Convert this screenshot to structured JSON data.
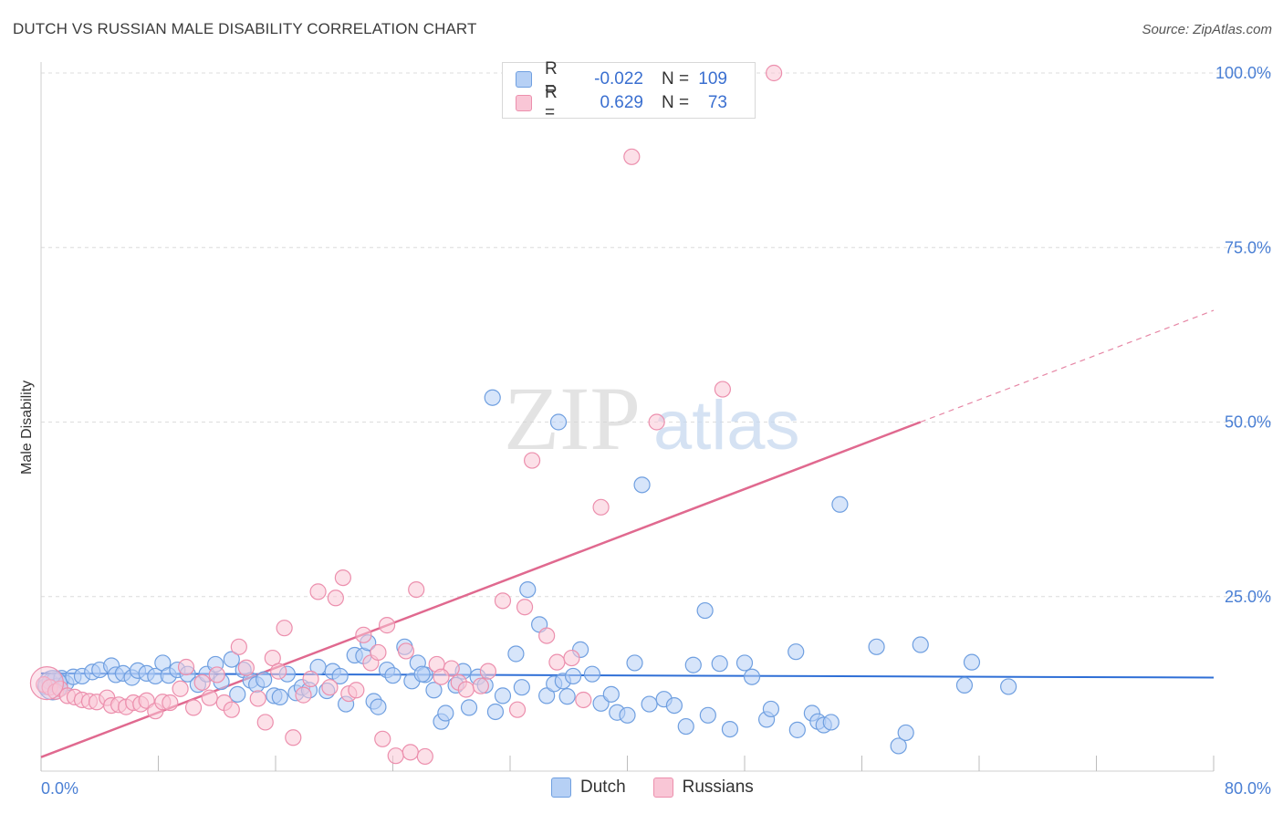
{
  "title": "DUTCH VS RUSSIAN MALE DISABILITY CORRELATION CHART",
  "source": "Source: ZipAtlas.com",
  "watermark": {
    "zip": "ZIP",
    "atlas": "atlas"
  },
  "legend": {
    "rows": [
      {
        "name": "Dutch",
        "r_label": "R =",
        "r_value": "-0.022",
        "n_label": "N =",
        "n_value": "109",
        "fill": "#b6d0f5",
        "stroke": "#6f9fe0"
      },
      {
        "name": "Russians",
        "r_label": "R =",
        "r_value": "0.629",
        "n_label": "N =",
        "n_value": "73",
        "fill": "#f9c6d6",
        "stroke": "#ec8fad"
      }
    ]
  },
  "bottom_legend": {
    "dutch": "Dutch",
    "russians": "Russians"
  },
  "colors": {
    "dutch_line": "#2f6fd6",
    "russian_line": "#e0698f",
    "tick_text": "#4a7fd4",
    "grid": "#dcdcdc"
  },
  "chart_data": {
    "type": "scatter",
    "ylabel": "Male Disability",
    "xlim": [
      0,
      80
    ],
    "ylim": [
      0,
      100
    ],
    "x_tick_labels": [
      "0.0%",
      "80.0%"
    ],
    "y_ticks": [
      25,
      50,
      75,
      100
    ],
    "y_tick_labels": [
      "25.0%",
      "50.0%",
      "75.0%",
      "100.0%"
    ],
    "series": [
      {
        "name": "Dutch",
        "trend": {
          "x": [
            0,
            80
          ],
          "y": [
            14.0,
            13.4
          ],
          "style": "solid"
        },
        "points": [
          [
            0.3,
            12.1
          ],
          [
            0.6,
            12.8
          ],
          [
            0.9,
            13.0
          ],
          [
            1.1,
            12.2
          ],
          [
            1.4,
            13.3
          ],
          [
            1.7,
            12.6
          ],
          [
            2.2,
            13.5
          ],
          [
            2.8,
            13.6
          ],
          [
            3.5,
            14.2
          ],
          [
            4.0,
            14.5
          ],
          [
            4.8,
            15.1
          ],
          [
            5.1,
            13.8
          ],
          [
            5.6,
            14.0
          ],
          [
            6.2,
            13.4
          ],
          [
            6.6,
            14.4
          ],
          [
            7.2,
            14.0
          ],
          [
            7.8,
            13.6
          ],
          [
            8.3,
            15.5
          ],
          [
            8.7,
            13.7
          ],
          [
            9.3,
            14.5
          ],
          [
            10.0,
            13.9
          ],
          [
            10.7,
            12.4
          ],
          [
            11.3,
            13.9
          ],
          [
            11.9,
            15.3
          ],
          [
            12.3,
            12.8
          ],
          [
            13.0,
            16.0
          ],
          [
            13.4,
            11.0
          ],
          [
            13.8,
            14.5
          ],
          [
            14.3,
            13.0
          ],
          [
            14.7,
            12.4
          ],
          [
            15.2,
            13.1
          ],
          [
            15.9,
            10.8
          ],
          [
            16.3,
            10.6
          ],
          [
            16.8,
            13.9
          ],
          [
            17.4,
            11.2
          ],
          [
            17.8,
            12.0
          ],
          [
            18.3,
            11.6
          ],
          [
            18.9,
            14.9
          ],
          [
            19.5,
            11.5
          ],
          [
            19.9,
            14.3
          ],
          [
            20.4,
            13.6
          ],
          [
            20.8,
            9.6
          ],
          [
            21.4,
            16.6
          ],
          [
            22.0,
            16.5
          ],
          [
            22.3,
            18.4
          ],
          [
            22.7,
            10.0
          ],
          [
            23.0,
            9.2
          ],
          [
            23.6,
            14.5
          ],
          [
            24.0,
            13.7
          ],
          [
            24.8,
            17.8
          ],
          [
            25.3,
            12.9
          ],
          [
            25.7,
            15.5
          ],
          [
            26.2,
            13.8
          ],
          [
            26.8,
            11.6
          ],
          [
            27.3,
            7.1
          ],
          [
            27.6,
            8.3
          ],
          [
            28.3,
            12.3
          ],
          [
            28.8,
            14.3
          ],
          [
            29.2,
            9.1
          ],
          [
            29.8,
            13.5
          ],
          [
            30.3,
            12.3
          ],
          [
            30.8,
            53.5
          ],
          [
            31.0,
            8.5
          ],
          [
            31.5,
            10.8
          ],
          [
            32.4,
            16.8
          ],
          [
            32.8,
            12.0
          ],
          [
            33.2,
            26.0
          ],
          [
            34.0,
            21.0
          ],
          [
            34.5,
            10.8
          ],
          [
            35.0,
            12.5
          ],
          [
            35.3,
            50.0
          ],
          [
            35.6,
            12.9
          ],
          [
            35.9,
            10.7
          ],
          [
            36.3,
            13.6
          ],
          [
            36.8,
            17.4
          ],
          [
            37.6,
            13.9
          ],
          [
            38.2,
            9.7
          ],
          [
            38.9,
            11.0
          ],
          [
            39.3,
            8.4
          ],
          [
            40.0,
            8.0
          ],
          [
            40.5,
            15.5
          ],
          [
            41.0,
            41.0
          ],
          [
            41.5,
            9.6
          ],
          [
            42.5,
            10.3
          ],
          [
            43.2,
            9.4
          ],
          [
            44.0,
            6.4
          ],
          [
            44.5,
            15.2
          ],
          [
            45.3,
            23.0
          ],
          [
            45.5,
            8.0
          ],
          [
            46.3,
            15.4
          ],
          [
            47.0,
            6.0
          ],
          [
            48.0,
            15.5
          ],
          [
            48.5,
            13.5
          ],
          [
            49.5,
            7.4
          ],
          [
            49.8,
            8.9
          ],
          [
            51.5,
            17.1
          ],
          [
            51.6,
            5.9
          ],
          [
            52.6,
            8.3
          ],
          [
            53.0,
            7.1
          ],
          [
            53.4,
            6.6
          ],
          [
            53.9,
            7.0
          ],
          [
            54.5,
            38.2
          ],
          [
            57.0,
            17.8
          ],
          [
            58.5,
            3.6
          ],
          [
            59.0,
            5.5
          ],
          [
            60.0,
            18.1
          ],
          [
            63.0,
            12.3
          ],
          [
            63.5,
            15.6
          ],
          [
            66.0,
            12.1
          ],
          [
            26.0,
            13.9
          ]
        ]
      },
      {
        "name": "Russians",
        "trend": {
          "x": [
            0,
            80
          ],
          "y": [
            2.0,
            66.0
          ],
          "solid_until": 60,
          "style": "solid-then-dashed"
        },
        "points": [
          [
            0.2,
            12.4
          ],
          [
            0.6,
            12.0
          ],
          [
            1.0,
            11.4
          ],
          [
            1.3,
            11.8
          ],
          [
            1.8,
            10.8
          ],
          [
            2.3,
            10.6
          ],
          [
            2.8,
            10.2
          ],
          [
            3.3,
            10.0
          ],
          [
            3.8,
            9.9
          ],
          [
            4.5,
            10.5
          ],
          [
            4.8,
            9.4
          ],
          [
            5.3,
            9.5
          ],
          [
            5.8,
            9.2
          ],
          [
            6.3,
            9.8
          ],
          [
            6.8,
            9.6
          ],
          [
            7.2,
            10.1
          ],
          [
            7.8,
            8.6
          ],
          [
            8.3,
            9.9
          ],
          [
            8.8,
            9.8
          ],
          [
            9.5,
            11.8
          ],
          [
            9.9,
            14.9
          ],
          [
            10.4,
            9.1
          ],
          [
            11.0,
            12.7
          ],
          [
            11.5,
            10.5
          ],
          [
            12.0,
            13.8
          ],
          [
            12.5,
            9.8
          ],
          [
            13.0,
            8.8
          ],
          [
            13.5,
            17.8
          ],
          [
            14.0,
            14.8
          ],
          [
            14.8,
            10.4
          ],
          [
            15.3,
            7.0
          ],
          [
            15.8,
            16.2
          ],
          [
            16.2,
            14.3
          ],
          [
            16.6,
            20.5
          ],
          [
            17.2,
            4.8
          ],
          [
            17.9,
            10.9
          ],
          [
            18.4,
            13.2
          ],
          [
            18.9,
            25.7
          ],
          [
            19.7,
            12.0
          ],
          [
            20.1,
            24.8
          ],
          [
            20.6,
            27.7
          ],
          [
            21.0,
            11.1
          ],
          [
            21.5,
            11.6
          ],
          [
            22.0,
            19.5
          ],
          [
            22.5,
            15.5
          ],
          [
            23.0,
            17.0
          ],
          [
            23.3,
            4.6
          ],
          [
            23.6,
            20.9
          ],
          [
            24.2,
            2.2
          ],
          [
            24.9,
            17.2
          ],
          [
            25.2,
            2.7
          ],
          [
            25.6,
            26.0
          ],
          [
            26.2,
            2.1
          ],
          [
            27.0,
            15.3
          ],
          [
            28.0,
            14.7
          ],
          [
            28.5,
            12.7
          ],
          [
            29.0,
            11.7
          ],
          [
            30.5,
            14.3
          ],
          [
            31.5,
            24.4
          ],
          [
            32.5,
            8.8
          ],
          [
            33.0,
            23.5
          ],
          [
            33.5,
            44.5
          ],
          [
            34.5,
            19.4
          ],
          [
            35.2,
            15.6
          ],
          [
            36.2,
            16.2
          ],
          [
            37.0,
            10.2
          ],
          [
            38.2,
            37.8
          ],
          [
            40.3,
            88.0
          ],
          [
            42.0,
            50.0
          ],
          [
            46.5,
            54.7
          ],
          [
            50.0,
            100.0
          ],
          [
            30.0,
            12.2
          ],
          [
            27.3,
            13.5
          ]
        ]
      }
    ]
  }
}
